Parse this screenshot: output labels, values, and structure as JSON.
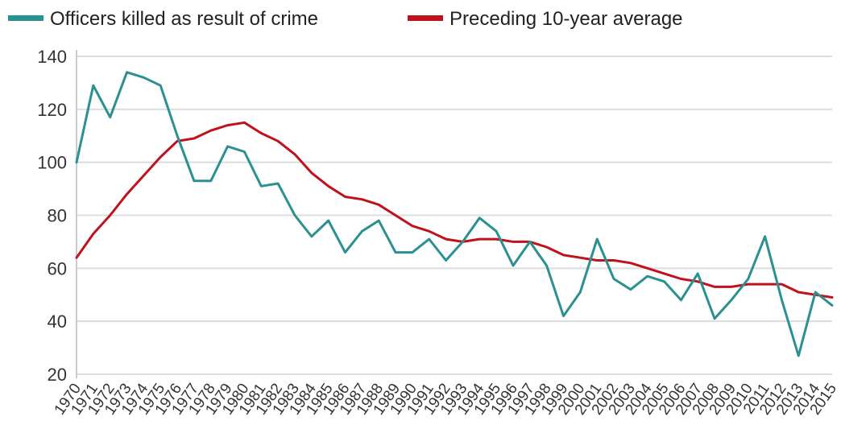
{
  "chart_data": {
    "type": "line",
    "x": [
      "1970",
      "1971",
      "1972",
      "1973",
      "1974",
      "1975",
      "1976",
      "1977",
      "1978",
      "1979",
      "1980",
      "1981",
      "1982",
      "1983",
      "1984",
      "1985",
      "1986",
      "1987",
      "1988",
      "1989",
      "1990",
      "1991",
      "1992",
      "1993",
      "1994",
      "1995",
      "1996",
      "1997",
      "1998",
      "1999",
      "2000",
      "2001",
      "2002",
      "2003",
      "2004",
      "2005",
      "2006",
      "2007",
      "2008",
      "2009",
      "2010",
      "2011",
      "2012",
      "2013",
      "2014",
      "2015"
    ],
    "series": [
      {
        "name": "Officers killed as result of crime",
        "color": "#2a9090",
        "values": [
          100,
          129,
          117,
          134,
          132,
          129,
          110,
          93,
          93,
          106,
          104,
          91,
          92,
          80,
          72,
          78,
          66,
          74,
          78,
          66,
          66,
          71,
          63,
          70,
          79,
          74,
          61,
          70,
          61,
          42,
          51,
          71,
          56,
          52,
          57,
          55,
          48,
          58,
          41,
          48,
          56,
          72,
          48,
          27,
          51,
          46
        ]
      },
      {
        "name": "Preceding 10-year average",
        "color": "#c0121c",
        "values": [
          64,
          73,
          80,
          88,
          95,
          102,
          108,
          109,
          112,
          114,
          115,
          111,
          108,
          103,
          96,
          91,
          87,
          86,
          84,
          80,
          76,
          74,
          71,
          70,
          71,
          71,
          70,
          70,
          68,
          65,
          64,
          63,
          63,
          62,
          60,
          58,
          56,
          55,
          53,
          53,
          54,
          54,
          54,
          51,
          50,
          49
        ]
      }
    ],
    "ylim": [
      20,
      140
    ],
    "yticks": [
      20,
      40,
      60,
      80,
      100,
      120,
      140
    ],
    "grid": true,
    "legend": "top-left"
  }
}
